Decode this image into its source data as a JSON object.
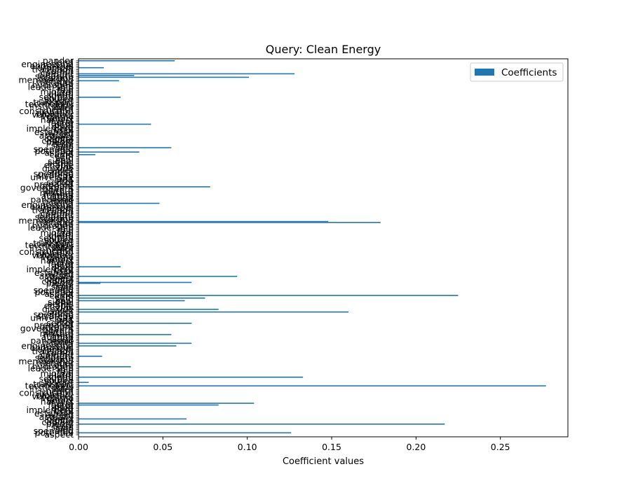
{
  "chart_data": {
    "type": "bar",
    "orientation": "horizontal",
    "title": "Query: Clean Energy",
    "xlabel": "Coefficient values",
    "ylabel": "",
    "xlim": [
      0,
      0.29
    ],
    "xticks": [
      "0.00",
      "0.05",
      "0.10",
      "0.15",
      "0.20",
      "0.25"
    ],
    "legend": {
      "label": "Coefficients",
      "placement": "top-right"
    },
    "color": "#1f77b4",
    "category_count": 216,
    "categories_readable": [
      "aspect",
      "potential",
      "spending",
      "sign",
      "signs",
      "term",
      "plenty",
      "conflict",
      "capital",
      "object",
      "actually",
      "extent",
      "establish",
      "impl",
      "implement",
      "drive",
      "dom",
      "factor",
      "harm",
      "harvest",
      "family",
      "volume",
      "volunteer",
      "pleasure",
      "construction",
      "health",
      "inter",
      "institution",
      "technology",
      "transport",
      "insight",
      "source",
      "solution",
      "sound",
      "alarm",
      "mineral",
      "rain",
      "role",
      "leadership",
      "hydrogen",
      "euro",
      "member",
      "membership",
      "carbon",
      "separate",
      "element",
      "commit",
      "comm",
      "transition",
      "uranium",
      "enormous",
      "engineering",
      "kind",
      "pander",
      "pandemic",
      "audit",
      "auction",
      "mining",
      "mixture",
      "output",
      "govern",
      "government",
      "prepare",
      "prepared",
      "sector",
      "stop",
      "unit",
      "university",
      "strategy",
      "spending",
      "shape",
      "silver",
      "dioxide",
      "zinc",
      "enable",
      "series",
      "signal",
      "coal",
      "acid",
      "cam",
      "cam6"
    ],
    "series": [
      {
        "name": "Coefficients",
        "values": [
          {
            "pos": 1.0,
            "value": 0.126
          },
          {
            "pos": 6.0,
            "value": 0.217
          },
          {
            "pos": 9.0,
            "value": 0.064
          },
          {
            "pos": 17.0,
            "value": 0.083
          },
          {
            "pos": 18.0,
            "value": 0.104
          },
          {
            "pos": 28.0,
            "value": 0.277
          },
          {
            "pos": 30.0,
            "value": 0.006
          },
          {
            "pos": 33.0,
            "value": 0.133
          },
          {
            "pos": 39.0,
            "value": 0.031
          },
          {
            "pos": 45.0,
            "value": 0.014
          },
          {
            "pos": 51.0,
            "value": 0.058
          },
          {
            "pos": 52.5,
            "value": 0.067
          },
          {
            "pos": 57.5,
            "value": 0.055
          },
          {
            "pos": 64.0,
            "value": 0.067
          },
          {
            "pos": 70.5,
            "value": 0.16
          },
          {
            "pos": 72.0,
            "value": 0.083
          },
          {
            "pos": 77.0,
            "value": 0.063
          },
          {
            "pos": 78.5,
            "value": 0.075
          },
          {
            "pos": 80.0,
            "value": 0.225
          },
          {
            "pos": 87.0,
            "value": 0.013
          },
          {
            "pos": 87.5,
            "value": 0.067
          },
          {
            "pos": 91.0,
            "value": 0.094
          },
          {
            "pos": 96.5,
            "value": 0.025
          },
          {
            "pos": 122.0,
            "value": 0.179
          },
          {
            "pos": 122.5,
            "value": 0.148
          },
          {
            "pos": 133.0,
            "value": 0.048
          },
          {
            "pos": 142.5,
            "value": 0.078
          },
          {
            "pos": 161.0,
            "value": 0.01
          },
          {
            "pos": 162.5,
            "value": 0.036
          },
          {
            "pos": 165.0,
            "value": 0.055
          },
          {
            "pos": 178.5,
            "value": 0.043
          },
          {
            "pos": 194.0,
            "value": 0.025
          },
          {
            "pos": 203.5,
            "value": 0.024
          },
          {
            "pos": 205.5,
            "value": 0.101
          },
          {
            "pos": 206.5,
            "value": 0.033
          },
          {
            "pos": 207.5,
            "value": 0.128
          },
          {
            "pos": 211.0,
            "value": 0.015
          },
          {
            "pos": 215.0,
            "value": 0.057
          }
        ]
      }
    ]
  }
}
